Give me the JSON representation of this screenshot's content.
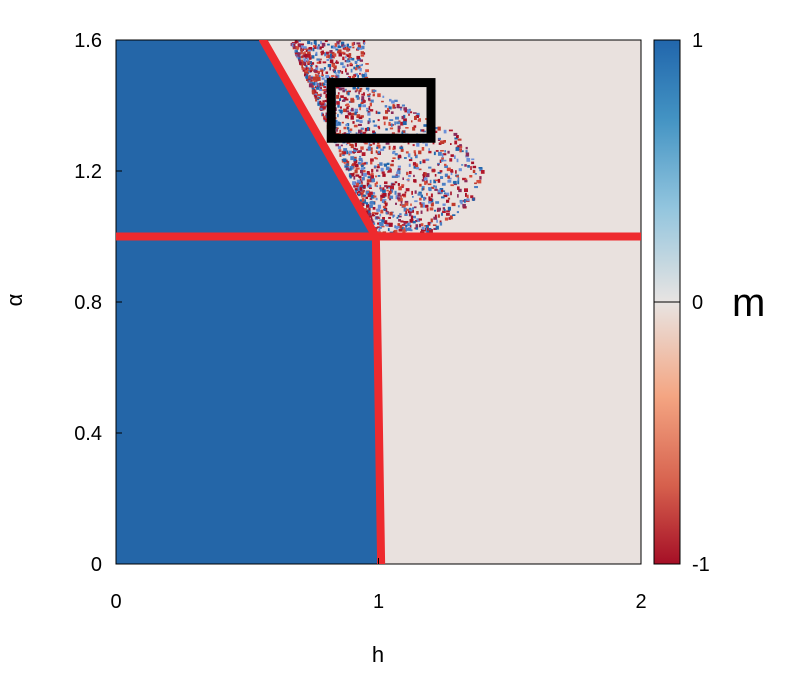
{
  "chart_data": {
    "type": "heatmap",
    "title": "",
    "xlabel": "h",
    "ylabel": "α",
    "xlim": [
      0,
      2
    ],
    "ylim": [
      0,
      1.6
    ],
    "x_ticks": [
      "0",
      "1",
      "2"
    ],
    "y_ticks": [
      "0",
      "0.4",
      "0.8",
      "1.2",
      "1.6"
    ],
    "colorbar": {
      "label": "m",
      "range": [
        -1,
        1
      ],
      "ticks": [
        "-1",
        "0",
        "1"
      ],
      "colors": {
        "max": "#2166ac",
        "mid": "#f0f0f0",
        "min": "#b2182b"
      }
    },
    "regions": [
      {
        "name": "m = 1 region",
        "value": 1,
        "polygon": [
          [
            0,
            0
          ],
          [
            1,
            0
          ],
          [
            1,
            1
          ],
          [
            0.56,
            1.6
          ],
          [
            0,
            1.6
          ]
        ]
      },
      {
        "name": "m = 0 region",
        "value": 0,
        "polygon": [
          [
            1,
            0
          ],
          [
            2,
            0
          ],
          [
            2,
            1.6
          ],
          [
            0.56,
            1.6
          ],
          [
            1,
            1
          ]
        ]
      }
    ],
    "disordered_cloud": {
      "h_range": [
        0.65,
        1.45
      ],
      "alpha_range": [
        1.0,
        1.6
      ],
      "values": [
        -1,
        1
      ]
    },
    "lines": [
      {
        "name": "horizontal boundary",
        "color": "#ee2a2e",
        "points": [
          [
            0,
            1.0
          ],
          [
            2,
            1.0
          ]
        ]
      },
      {
        "name": "vertical boundary",
        "color": "#ee2a2e",
        "points": [
          [
            0.99,
            1.0
          ],
          [
            1.01,
            0.0
          ]
        ]
      },
      {
        "name": "diagonal boundary",
        "color": "#ee2a2e",
        "points": [
          [
            0.56,
            1.6
          ],
          [
            0.99,
            1.0
          ]
        ]
      }
    ],
    "highlight_box": {
      "color": "#000000",
      "h_range": [
        0.82,
        1.2
      ],
      "alpha_range": [
        1.3,
        1.47
      ]
    },
    "grid": false
  }
}
